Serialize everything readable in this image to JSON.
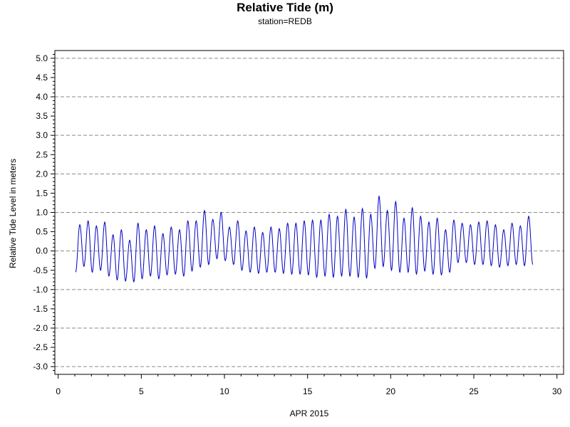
{
  "chart_data": {
    "type": "line",
    "title": "Relative Tide (m)",
    "subtitle": "station=REDB",
    "xlabel": "APR 2015",
    "ylabel": "Relative Tide Level in meters",
    "xlim": [
      -0.2,
      30.4
    ],
    "ylim": [
      -3.2,
      5.2
    ],
    "x_ticks": [
      0,
      5,
      10,
      15,
      20,
      25,
      30
    ],
    "x_tick_labels": [
      "0",
      "5",
      "10",
      "15",
      "20",
      "25",
      "30"
    ],
    "y_ticks": [
      5.0,
      4.5,
      4.0,
      3.5,
      3.0,
      2.5,
      2.0,
      1.5,
      1.0,
      0.5,
      0.0,
      -0.5,
      -1.0,
      -1.5,
      -2.0,
      -2.5,
      -3.0
    ],
    "y_tick_labels": [
      "5.0",
      "4.5",
      "4.0",
      "3.5",
      "3.0",
      "2.5",
      "2.0",
      "1.5",
      "1.0",
      "0.5",
      "0.0",
      "-0.5",
      "-1.0",
      "-1.5",
      "-2.0",
      "-2.5",
      "-3.0"
    ],
    "grid": "horizontal dashed at major y ticks",
    "series": [
      {
        "color": "#0000c0",
        "extrema": [
          [
            1.05,
            -0.55
          ],
          [
            1.3,
            0.68
          ],
          [
            1.55,
            -0.4
          ],
          [
            1.8,
            0.78
          ],
          [
            2.05,
            -0.55
          ],
          [
            2.3,
            0.65
          ],
          [
            2.55,
            -0.5
          ],
          [
            2.8,
            0.75
          ],
          [
            3.05,
            -0.65
          ],
          [
            3.3,
            0.42
          ],
          [
            3.55,
            -0.75
          ],
          [
            3.8,
            0.55
          ],
          [
            4.05,
            -0.78
          ],
          [
            4.3,
            0.28
          ],
          [
            4.55,
            -0.8
          ],
          [
            4.8,
            0.72
          ],
          [
            5.05,
            -0.72
          ],
          [
            5.3,
            0.55
          ],
          [
            5.55,
            -0.65
          ],
          [
            5.8,
            0.65
          ],
          [
            6.05,
            -0.72
          ],
          [
            6.3,
            0.45
          ],
          [
            6.55,
            -0.62
          ],
          [
            6.8,
            0.62
          ],
          [
            7.05,
            -0.6
          ],
          [
            7.3,
            0.55
          ],
          [
            7.55,
            -0.65
          ],
          [
            7.8,
            0.78
          ],
          [
            8.05,
            -0.52
          ],
          [
            8.3,
            0.78
          ],
          [
            8.55,
            -0.42
          ],
          [
            8.8,
            1.05
          ],
          [
            9.05,
            -0.35
          ],
          [
            9.3,
            0.82
          ],
          [
            9.55,
            -0.2
          ],
          [
            9.8,
            1.0
          ],
          [
            10.05,
            -0.25
          ],
          [
            10.3,
            0.62
          ],
          [
            10.55,
            -0.35
          ],
          [
            10.8,
            0.78
          ],
          [
            11.05,
            -0.5
          ],
          [
            11.3,
            0.52
          ],
          [
            11.55,
            -0.55
          ],
          [
            11.8,
            0.62
          ],
          [
            12.05,
            -0.58
          ],
          [
            12.3,
            0.48
          ],
          [
            12.55,
            -0.55
          ],
          [
            12.8,
            0.62
          ],
          [
            13.05,
            -0.55
          ],
          [
            13.3,
            0.58
          ],
          [
            13.55,
            -0.58
          ],
          [
            13.8,
            0.72
          ],
          [
            14.05,
            -0.6
          ],
          [
            14.3,
            0.72
          ],
          [
            14.55,
            -0.6
          ],
          [
            14.8,
            0.78
          ],
          [
            15.05,
            -0.62
          ],
          [
            15.3,
            0.8
          ],
          [
            15.55,
            -0.68
          ],
          [
            15.8,
            0.8
          ],
          [
            16.05,
            -0.65
          ],
          [
            16.3,
            0.95
          ],
          [
            16.55,
            -0.68
          ],
          [
            16.8,
            0.9
          ],
          [
            17.05,
            -0.65
          ],
          [
            17.3,
            1.08
          ],
          [
            17.55,
            -0.65
          ],
          [
            17.8,
            0.88
          ],
          [
            18.05,
            -0.68
          ],
          [
            18.3,
            1.1
          ],
          [
            18.55,
            -0.7
          ],
          [
            18.8,
            0.95
          ],
          [
            19.05,
            -0.45
          ],
          [
            19.3,
            1.42
          ],
          [
            19.55,
            -0.4
          ],
          [
            19.8,
            1.05
          ],
          [
            20.05,
            -0.5
          ],
          [
            20.3,
            1.28
          ],
          [
            20.55,
            -0.55
          ],
          [
            20.8,
            0.85
          ],
          [
            21.05,
            -0.55
          ],
          [
            21.3,
            1.12
          ],
          [
            21.55,
            -0.6
          ],
          [
            21.8,
            0.9
          ],
          [
            22.05,
            -0.52
          ],
          [
            22.3,
            0.75
          ],
          [
            22.55,
            -0.6
          ],
          [
            22.8,
            0.85
          ],
          [
            23.05,
            -0.62
          ],
          [
            23.3,
            0.55
          ],
          [
            23.55,
            -0.55
          ],
          [
            23.8,
            0.8
          ],
          [
            24.05,
            -0.3
          ],
          [
            24.3,
            0.72
          ],
          [
            24.55,
            -0.3
          ],
          [
            24.8,
            0.68
          ],
          [
            25.05,
            -0.35
          ],
          [
            25.3,
            0.75
          ],
          [
            25.55,
            -0.35
          ],
          [
            25.8,
            0.78
          ],
          [
            26.05,
            -0.38
          ],
          [
            26.3,
            0.68
          ],
          [
            26.55,
            -0.42
          ],
          [
            26.8,
            0.55
          ],
          [
            27.05,
            -0.38
          ],
          [
            27.3,
            0.72
          ],
          [
            27.55,
            -0.35
          ],
          [
            27.8,
            0.65
          ],
          [
            28.05,
            -0.38
          ],
          [
            28.3,
            0.9
          ],
          [
            28.55,
            -0.35
          ]
        ]
      }
    ]
  }
}
